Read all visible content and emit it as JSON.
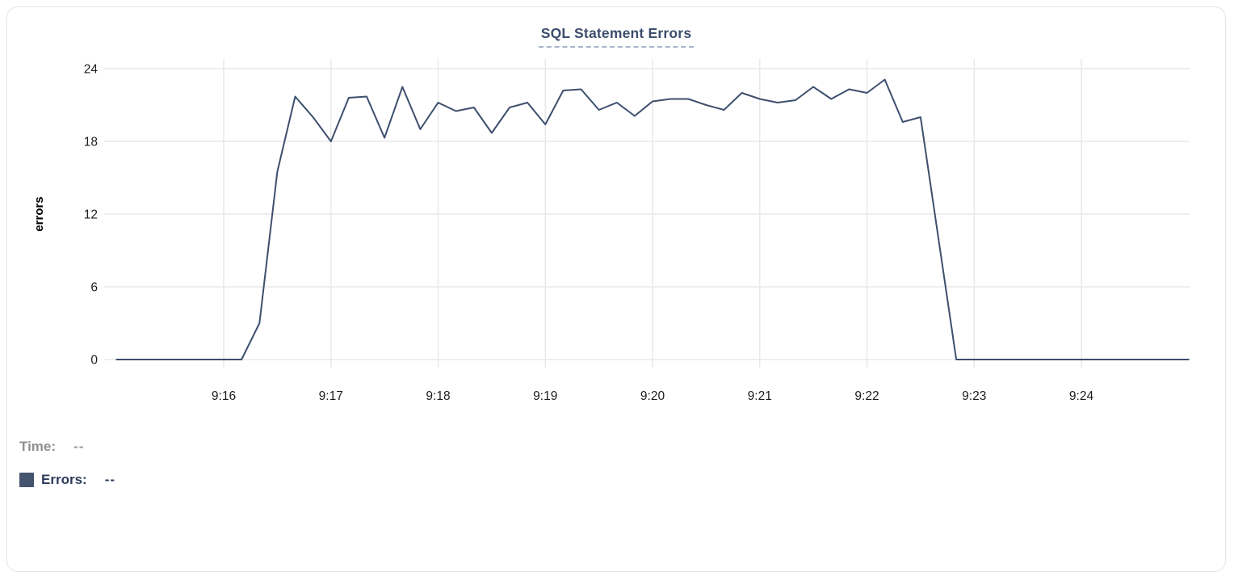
{
  "chart": {
    "title": "SQL Statement Errors"
  },
  "legend": {
    "time_label": "Time:",
    "time_value": "--",
    "errors_label": "Errors:",
    "errors_value": "--"
  },
  "colors": {
    "line": "#3e4f6e",
    "title": "#3d4e6d",
    "title_underline": "#a8b3c8",
    "swatch": "#44536e",
    "legend_errors_text": "#2d3c5c",
    "legend_time_text": "#8e8e93",
    "legend_time_value": "#98989d",
    "grid": "#e9e9eb",
    "tick_text": "#1d1d1f",
    "axis_label_text": "#000000"
  },
  "chart_data": {
    "type": "line",
    "title": "SQL Statement Errors",
    "xlabel": "",
    "ylabel": "errors",
    "ylim": [
      0,
      24
    ],
    "y_ticks": [
      0,
      6,
      12,
      18,
      24
    ],
    "x_tick_labels": [
      "9:16",
      "9:17",
      "9:18",
      "9:19",
      "9:20",
      "9:21",
      "9:22",
      "9:23",
      "9:24"
    ],
    "x_tick_seconds": [
      60,
      120,
      180,
      240,
      300,
      360,
      420,
      480,
      540
    ],
    "x_range_seconds": [
      0,
      600
    ],
    "x_range_note": "x axis spans 9:15:00 to 9:25:00; data sampled every 10 s",
    "grid": true,
    "legend_position": "bottom-left",
    "series": [
      {
        "name": "Errors",
        "color": "#3e4f6e",
        "x_seconds": [
          0,
          10,
          20,
          30,
          40,
          50,
          60,
          70,
          80,
          90,
          100,
          110,
          120,
          130,
          140,
          150,
          160,
          170,
          180,
          190,
          200,
          210,
          220,
          230,
          240,
          250,
          260,
          270,
          280,
          290,
          300,
          310,
          320,
          330,
          340,
          350,
          360,
          370,
          380,
          390,
          400,
          410,
          420,
          430,
          440,
          450,
          460,
          470,
          480,
          490,
          500,
          510,
          520,
          530,
          540,
          550,
          560,
          570,
          580,
          590,
          600
        ],
        "values": [
          0,
          0,
          0,
          0,
          0,
          0,
          0,
          0,
          3,
          15.5,
          21.7,
          20,
          18,
          21.6,
          21.7,
          18.3,
          22.5,
          19,
          21.2,
          20.5,
          20.8,
          18.7,
          20.8,
          21.2,
          19.4,
          22.2,
          22.3,
          20.6,
          21.2,
          20.1,
          21.3,
          21.5,
          21.5,
          21,
          20.6,
          22,
          21.5,
          21.2,
          21.4,
          22.5,
          21.5,
          22.3,
          22,
          23.1,
          19.6,
          20,
          10,
          0,
          0,
          0,
          0,
          0,
          0,
          0,
          0,
          0,
          0,
          0,
          0,
          0,
          0
        ]
      }
    ]
  }
}
